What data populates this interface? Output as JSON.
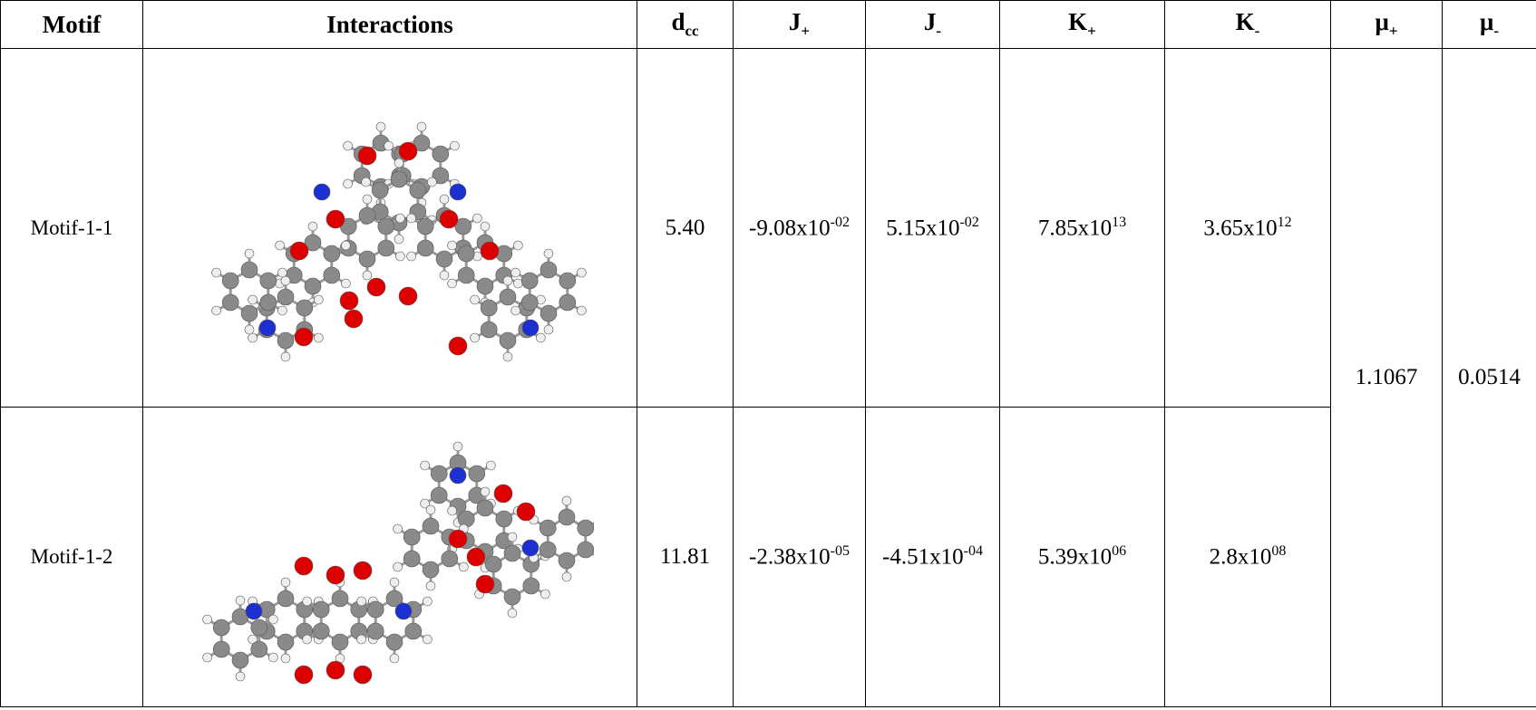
{
  "table": {
    "header": [
      {
        "text": "Motif"
      },
      {
        "text": "Interactions"
      },
      {
        "text": "d",
        "sub": "cc"
      },
      {
        "text": "J",
        "sub": "+"
      },
      {
        "text": "J",
        "sub": "-"
      },
      {
        "text": "K",
        "sub": "+"
      },
      {
        "text": "K",
        "sub": "-"
      },
      {
        "text": "μ",
        "sub": "+"
      },
      {
        "text": "μ",
        "sub": "-"
      }
    ],
    "rows": [
      {
        "motif": "Motif-1-1",
        "dcc": "5.40",
        "j_plus": {
          "base": "-9.08x10",
          "sup": "-02"
        },
        "j_minus": {
          "base": "5.15x10",
          "sup": "-02"
        },
        "k_plus": {
          "base": "7.85x10",
          "sup": "13"
        },
        "k_minus": {
          "base": "3.65x10",
          "sup": "12"
        }
      },
      {
        "motif": "Motif-1-2",
        "dcc": "11.81",
        "j_plus": {
          "base": "-2.38x10",
          "sup": "-05"
        },
        "j_minus": {
          "base": "-4.51x10",
          "sup": "-04"
        },
        "k_plus": {
          "base": "5.39x10",
          "sup": "06"
        },
        "k_minus": {
          "base": "2.8x10",
          "sup": "08"
        }
      }
    ],
    "mu_plus": "1.1067",
    "mu_minus": "0.0514"
  }
}
